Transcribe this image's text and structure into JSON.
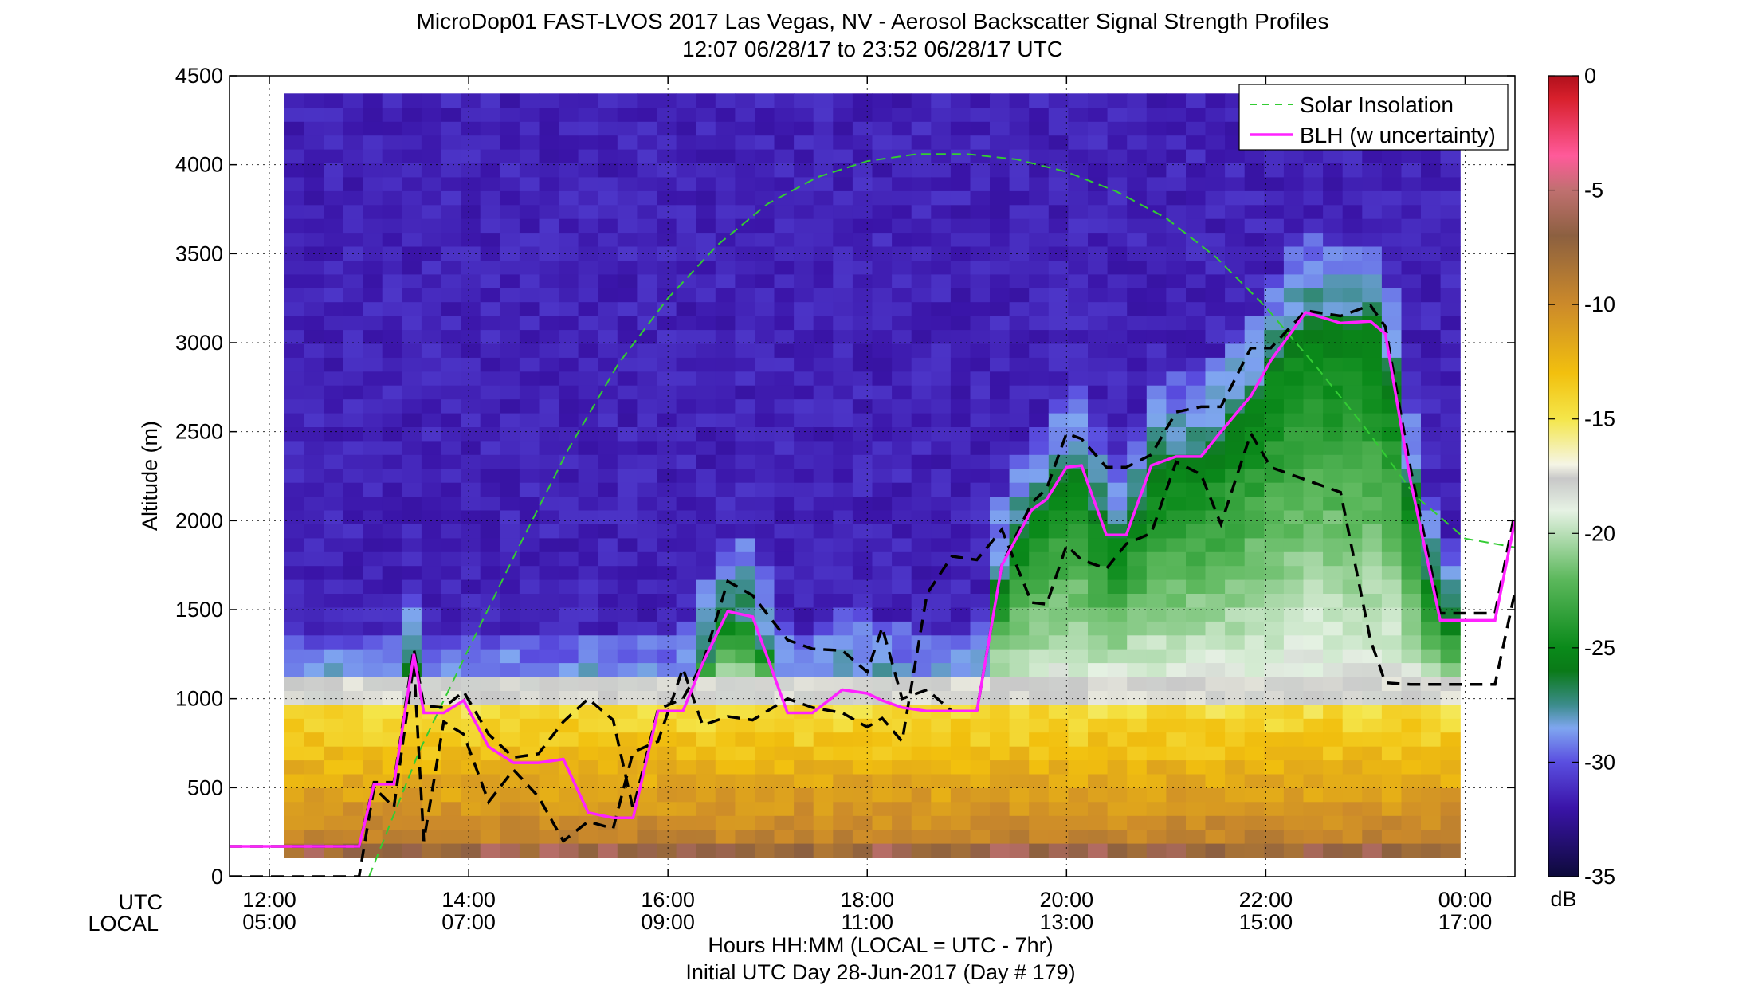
{
  "chart_data": {
    "type": "heatmap",
    "title": "MicroDop01 FAST-LVOS 2017 Las Vegas, NV - Aerosol Backscatter Signal Strength Profiles",
    "subtitle": "12:07 06/28/17 to 23:52 06/28/17  UTC",
    "ylabel": "Altitude (m)",
    "xlabel": "Hours HH:MM  (LOCAL = UTC - 7hr)",
    "xlabel2": "Initial UTC Day 28-Jun-2017 (Day # 179)",
    "x_row_labels": [
      "UTC",
      "LOCAL"
    ],
    "xlim_hours": [
      11.6,
      24.5
    ],
    "ylim": [
      0,
      4500
    ],
    "x_ticks": [
      {
        "hour": 12,
        "utc": "12:00",
        "local": "05:00"
      },
      {
        "hour": 14,
        "utc": "14:00",
        "local": "07:00"
      },
      {
        "hour": 16,
        "utc": "16:00",
        "local": "09:00"
      },
      {
        "hour": 18,
        "utc": "18:00",
        "local": "11:00"
      },
      {
        "hour": 20,
        "utc": "20:00",
        "local": "13:00"
      },
      {
        "hour": 22,
        "utc": "22:00",
        "local": "15:00"
      },
      {
        "hour": 24,
        "utc": "00:00",
        "local": "17:00"
      }
    ],
    "y_ticks": [
      0,
      500,
      1000,
      1500,
      2000,
      2500,
      3000,
      3500,
      4000,
      4500
    ],
    "grid": true,
    "colorbar": {
      "label": "dB",
      "range": [
        -35,
        0
      ],
      "ticks": [
        0,
        -5,
        -10,
        -15,
        -20,
        -25,
        -30,
        -35
      ],
      "stops": [
        {
          "v": -35,
          "c": "#0d0a3a"
        },
        {
          "v": -32,
          "c": "#3a14a8"
        },
        {
          "v": -30,
          "c": "#5a4ee0"
        },
        {
          "v": -28.5,
          "c": "#7fa6f0"
        },
        {
          "v": -27.5,
          "c": "#3c8c8c"
        },
        {
          "v": -26,
          "c": "#0a7a18"
        },
        {
          "v": -25,
          "c": "#0a8a1a"
        },
        {
          "v": -22,
          "c": "#5cb85c"
        },
        {
          "v": -19,
          "c": "#e6f2e4"
        },
        {
          "v": -17.6,
          "c": "#c8c8c8"
        },
        {
          "v": -17,
          "c": "#f5f5e6"
        },
        {
          "v": -15,
          "c": "#f4e64a"
        },
        {
          "v": -13,
          "c": "#f2c00e"
        },
        {
          "v": -10,
          "c": "#cc8a2a"
        },
        {
          "v": -7,
          "c": "#8c6040"
        },
        {
          "v": -5,
          "c": "#c07070"
        },
        {
          "v": -3.5,
          "c": "#ff5a9a"
        },
        {
          "v": -1,
          "c": "#d8202c"
        },
        {
          "v": 0,
          "c": "#b0101c"
        }
      ]
    },
    "legend": {
      "placement": "top-right",
      "entries": [
        {
          "label": "Solar Insolation",
          "style": "dashed",
          "color": "#33cc33"
        },
        {
          "label": "BLH (w uncertainty)",
          "style": "solid",
          "color": "#ff22ff"
        }
      ]
    },
    "series": [
      {
        "id": "solar",
        "x": [
          13.0,
          13.5,
          14.0,
          14.5,
          15.0,
          15.5,
          16.0,
          16.5,
          17.0,
          17.5,
          18.0,
          18.5,
          19.0,
          19.5,
          20.0,
          20.5,
          21.0,
          21.5,
          22.0,
          22.5,
          23.0,
          23.5,
          24.0,
          24.5
        ],
        "y": [
          0,
          700,
          1280,
          1850,
          2400,
          2880,
          3250,
          3550,
          3780,
          3930,
          4020,
          4060,
          4060,
          4030,
          3960,
          3850,
          3700,
          3480,
          3200,
          2870,
          2520,
          2140,
          1900,
          1850
        ]
      },
      {
        "id": "blh",
        "x": [
          11.6,
          12.25,
          12.55,
          12.9,
          13.05,
          13.25,
          13.45,
          13.55,
          13.75,
          13.95,
          14.2,
          14.45,
          14.7,
          14.95,
          15.2,
          15.45,
          15.65,
          15.9,
          16.15,
          16.35,
          16.6,
          16.85,
          17.2,
          17.45,
          17.75,
          18.0,
          18.15,
          18.35,
          18.6,
          18.85,
          19.1,
          19.35,
          19.65,
          19.8,
          20.0,
          20.15,
          20.4,
          20.6,
          20.85,
          21.1,
          21.35,
          21.55,
          21.85,
          22.05,
          22.4,
          22.75,
          23.05,
          23.2,
          23.45,
          23.75,
          24.0,
          24.15,
          24.3,
          24.5
        ],
        "y": [
          170,
          170,
          170,
          170,
          520,
          520,
          1250,
          920,
          920,
          990,
          730,
          640,
          640,
          660,
          360,
          330,
          330,
          930,
          930,
          1200,
          1490,
          1460,
          920,
          920,
          1050,
          1030,
          990,
          950,
          930,
          930,
          930,
          1750,
          2060,
          2120,
          2300,
          2310,
          1920,
          1920,
          2310,
          2360,
          2360,
          2500,
          2700,
          2900,
          3170,
          3110,
          3120,
          3050,
          2230,
          1440,
          1440,
          1440,
          1440,
          2000
        ]
      },
      {
        "id": "blh_upper",
        "x": [
          11.6,
          12.25,
          12.55,
          12.9,
          13.05,
          13.25,
          13.45,
          13.55,
          13.75,
          13.95,
          14.2,
          14.45,
          14.7,
          14.95,
          15.2,
          15.45,
          15.65,
          15.9,
          16.15,
          16.35,
          16.6,
          16.85,
          17.2,
          17.45,
          17.75,
          18.0,
          18.15,
          18.35,
          18.6,
          18.85,
          19.1,
          19.35,
          19.65,
          19.8,
          20.0,
          20.15,
          20.4,
          20.6,
          20.85,
          21.1,
          21.35,
          21.55,
          21.85,
          22.05,
          22.4,
          22.75,
          23.05,
          23.2,
          23.45,
          23.75,
          24.0,
          24.15,
          24.3,
          24.5
        ],
        "y": [
          170,
          170,
          170,
          170,
          530,
          530,
          1280,
          960,
          950,
          1040,
          800,
          670,
          690,
          870,
          1000,
          880,
          380,
          940,
          1000,
          1200,
          1660,
          1580,
          1330,
          1280,
          1270,
          1150,
          1400,
          1000,
          1050,
          930,
          930,
          1750,
          2100,
          2180,
          2490,
          2460,
          2300,
          2300,
          2370,
          2610,
          2640,
          2640,
          2970,
          2970,
          3180,
          3150,
          3210,
          3090,
          2300,
          1480,
          1480,
          1480,
          1480,
          2050
        ]
      },
      {
        "id": "blh_lower",
        "x": [
          11.6,
          12.25,
          12.55,
          12.9,
          13.05,
          13.25,
          13.45,
          13.55,
          13.75,
          13.95,
          14.2,
          14.45,
          14.7,
          14.95,
          15.2,
          15.45,
          15.65,
          15.9,
          16.15,
          16.35,
          16.6,
          16.85,
          17.2,
          17.45,
          17.75,
          18.0,
          18.15,
          18.35,
          18.6,
          18.85,
          19.1,
          19.35,
          19.65,
          19.8,
          20.0,
          20.15,
          20.4,
          20.6,
          20.85,
          21.1,
          21.35,
          21.55,
          21.85,
          22.05,
          22.4,
          22.75,
          23.05,
          23.2,
          23.45,
          23.75,
          24.0,
          24.15,
          24.3,
          24.5
        ],
        "y": [
          0,
          0,
          0,
          0,
          500,
          390,
          1200,
          200,
          870,
          800,
          420,
          600,
          450,
          200,
          310,
          270,
          700,
          760,
          1170,
          850,
          900,
          880,
          1000,
          950,
          920,
          840,
          890,
          760,
          1590,
          1800,
          1780,
          1950,
          1540,
          1530,
          1860,
          1780,
          1730,
          1870,
          1930,
          2330,
          2260,
          1980,
          2490,
          2300,
          2230,
          2160,
          1330,
          1090,
          1080,
          1080,
          1080,
          1080,
          1080,
          1600
        ]
      }
    ]
  }
}
